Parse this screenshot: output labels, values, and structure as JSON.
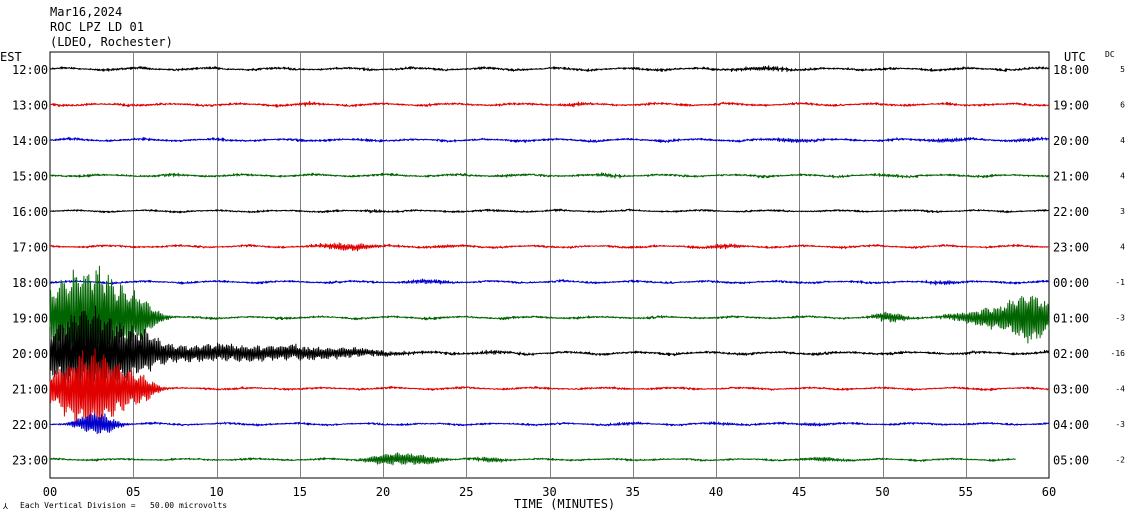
{
  "header": {
    "date": "Mar16,2024",
    "station": "ROC LPZ LD 01",
    "network": "(LDEO, Rochester)"
  },
  "left_axis_label": "EST",
  "right_axis_label": "UTC",
  "dc_header": "DC",
  "x_axis_title": "TIME (MINUTES)",
  "footer_scale": "Each Vertical Division =   50.00 microvolts",
  "footer_mark": "⅄",
  "colors": {
    "black": "#000000",
    "red": "#e00000",
    "blue": "#0000cc",
    "green": "#006400",
    "grid": "#808080"
  },
  "chart_data": {
    "type": "line",
    "title": "ROC LPZ LD 01",
    "xlabel": "TIME (MINUTES)",
    "xlim": [
      0,
      60
    ],
    "x_ticks": [
      "00",
      "05",
      "10",
      "15",
      "20",
      "25",
      "30",
      "35",
      "40",
      "45",
      "50",
      "55",
      "60"
    ],
    "grid": true,
    "rows": [
      {
        "est": "12:00",
        "utc": "18:00",
        "dc": "5",
        "color": "black",
        "amp": 0.16,
        "events": [
          [
            43,
            1.8,
            0.12
          ]
        ]
      },
      {
        "est": "13:00",
        "utc": "19:00",
        "dc": "6",
        "color": "red",
        "amp": 0.15,
        "events": [
          [
            15.5,
            0.8,
            0.09
          ],
          [
            31.5,
            1.0,
            0.09
          ]
        ]
      },
      {
        "est": "14:00",
        "utc": "20:00",
        "dc": "4",
        "color": "blue",
        "amp": 0.15,
        "events": [
          [
            44.5,
            1.5,
            0.12
          ],
          [
            53.8,
            1.5,
            0.12
          ],
          [
            58.5,
            1.2,
            0.08
          ]
        ]
      },
      {
        "est": "15:00",
        "utc": "21:00",
        "dc": "4",
        "color": "green",
        "amp": 0.14,
        "events": [
          [
            7.5,
            0.8,
            0.07
          ],
          [
            27.5,
            0.8,
            0.07
          ],
          [
            33.5,
            1.0,
            0.09
          ],
          [
            50.5,
            1.0,
            0.08
          ]
        ]
      },
      {
        "est": "16:00",
        "utc": "22:00",
        "dc": "3",
        "color": "black",
        "amp": 0.12,
        "events": [
          [
            19.5,
            1.0,
            0.08
          ],
          [
            27,
            0.8,
            0.06
          ]
        ]
      },
      {
        "est": "17:00",
        "utc": "23:00",
        "dc": "4",
        "color": "red",
        "amp": 0.14,
        "events": [
          [
            17.8,
            1.8,
            0.22
          ],
          [
            23.8,
            0.8,
            0.1
          ],
          [
            40.5,
            1.2,
            0.14
          ]
        ]
      },
      {
        "est": "18:00",
        "utc": "00:00",
        "dc": "-1",
        "color": "blue",
        "amp": 0.14,
        "events": [
          [
            22.8,
            1.5,
            0.12
          ],
          [
            53.8,
            1.2,
            0.1
          ]
        ]
      },
      {
        "est": "19:00",
        "utc": "01:00",
        "dc": "-3",
        "color": "green",
        "amp": 0.14,
        "events": [
          [
            1.2,
            2.2,
            1.9
          ],
          [
            3.2,
            2.0,
            2.2
          ],
          [
            5.5,
            1.0,
            0.8
          ],
          [
            50.5,
            1.0,
            0.3
          ],
          [
            57.2,
            2.5,
            0.7
          ],
          [
            59,
            1.2,
            1.3
          ]
        ]
      },
      {
        "est": "20:00",
        "utc": "02:00",
        "dc": "-16",
        "color": "black",
        "amp": 0.17,
        "events": [
          [
            1.2,
            2.2,
            1.6
          ],
          [
            3.0,
            2.0,
            1.8
          ],
          [
            5.5,
            1.4,
            0.8
          ],
          [
            9,
            4.5,
            0.45
          ],
          [
            15.5,
            5.0,
            0.35
          ],
          [
            26.5,
            1.0,
            0.1
          ]
        ]
      },
      {
        "est": "21:00",
        "utc": "03:00",
        "dc": "-4",
        "color": "red",
        "amp": 0.13,
        "events": [
          [
            1.5,
            2.0,
            1.5
          ],
          [
            3.2,
            1.8,
            1.6
          ],
          [
            5.5,
            1.0,
            0.6
          ]
        ]
      },
      {
        "est": "22:00",
        "utc": "04:00",
        "dc": "-3",
        "color": "blue",
        "amp": 0.13,
        "events": [
          [
            2.8,
            1.2,
            0.7
          ],
          [
            34.5,
            1.0,
            0.08
          ],
          [
            40.5,
            1.0,
            0.08
          ],
          [
            45.8,
            1.0,
            0.09
          ]
        ]
      },
      {
        "est": "23:00",
        "utc": "05:00",
        "dc": "-2",
        "color": "green",
        "amp": 0.12,
        "end_minute": 58,
        "events": [
          [
            20.5,
            1.5,
            0.35
          ],
          [
            22.5,
            1.2,
            0.25
          ],
          [
            26.5,
            1.0,
            0.15
          ],
          [
            46.5,
            1.2,
            0.12
          ]
        ]
      }
    ]
  }
}
